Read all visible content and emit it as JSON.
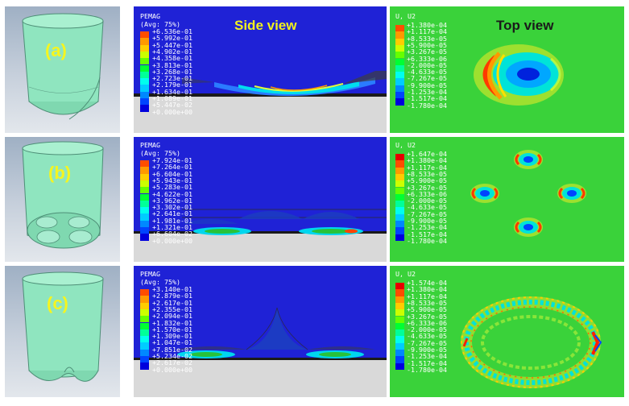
{
  "rows": [
    {
      "label": "(a)",
      "side_legend": {
        "title_line1": "PEMAG",
        "title_line2": "(Avg: 75%)",
        "values": [
          "+6.536e-01",
          "+5.992e-01",
          "+5.447e-01",
          "+4.902e-01",
          "+4.358e-01",
          "+3.813e-01",
          "+3.268e-01",
          "+2.723e-01",
          "+2.179e-01",
          "+1.634e-01",
          "+1.089e-01",
          "+5.447e-02",
          "+0.000e+00"
        ]
      },
      "top_legend": {
        "title": "U, U2",
        "values": [
          "+1.380e-04",
          "+1.117e-04",
          "+8.533e-05",
          "+5.900e-05",
          "+3.267e-05",
          "+6.333e-06",
          "-2.000e-05",
          "-4.633e-05",
          "-7.267e-05",
          "-9.900e-05",
          "-1.253e-04",
          "-1.517e-04",
          "-1.780e-04"
        ]
      }
    },
    {
      "label": "(b)",
      "side_legend": {
        "title_line1": "PEMAG",
        "title_line2": "(Avg: 75%)",
        "values": [
          "+7.924e-01",
          "+7.264e-01",
          "+6.604e-01",
          "+5.943e-01",
          "+5.283e-01",
          "+4.622e-01",
          "+3.962e-01",
          "+3.302e-01",
          "+2.641e-01",
          "+1.981e-01",
          "+1.321e-01",
          "+6.604e-02",
          "+0.000e+00"
        ]
      },
      "top_legend": {
        "title": "U, U2",
        "values": [
          "+1.647e-04",
          "+1.380e-04",
          "+1.117e-04",
          "+8.533e-05",
          "+5.900e-05",
          "+3.267e-05",
          "+6.333e-06",
          "-2.000e-05",
          "-4.633e-05",
          "-7.267e-05",
          "-9.900e-05",
          "-1.253e-04",
          "-1.517e-04",
          "-1.780e-04"
        ]
      }
    },
    {
      "label": "(c)",
      "side_legend": {
        "title_line1": "PEMAG",
        "title_line2": "(Avg: 75%)",
        "values": [
          "+3.140e-01",
          "+2.879e-01",
          "+2.617e-01",
          "+2.355e-01",
          "+2.094e-01",
          "+1.832e-01",
          "+1.570e-01",
          "+1.309e-01",
          "+1.047e-01",
          "+7.851e-02",
          "+5.234e-02",
          "+2.617e-02",
          "+0.000e+00"
        ]
      },
      "top_legend": {
        "title": "U, U2",
        "values": [
          "+1.574e-04",
          "+1.380e-04",
          "+1.117e-04",
          "+8.533e-05",
          "+5.900e-05",
          "+3.267e-05",
          "+6.333e-06",
          "-2.000e-05",
          "-4.633e-05",
          "-7.267e-05",
          "-9.900e-05",
          "-1.253e-04",
          "-1.517e-04",
          "-1.780e-04"
        ]
      }
    }
  ],
  "headers": {
    "side_view": "Side view",
    "top_view": "Top view"
  },
  "colors": {
    "background_blue": "#1f22d6",
    "background_green": "#3ad23a",
    "label_yellow": "#f5f51f",
    "legend_scale": [
      "#e60000",
      "#ff4d00",
      "#ff9900",
      "#ffcc00",
      "#ccff00",
      "#66ff00",
      "#00ff33",
      "#00ff99",
      "#00ffee",
      "#00ccff",
      "#0088ff",
      "#0044ff",
      "#0000dd",
      "#d9d9d9"
    ]
  }
}
